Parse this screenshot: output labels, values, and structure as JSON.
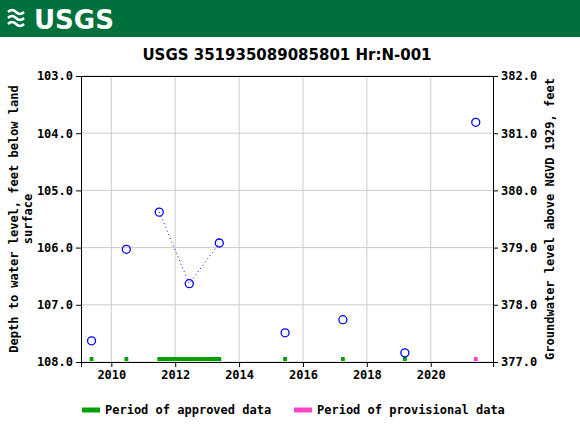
{
  "header": {
    "logo": "USGS"
  },
  "chart_data": {
    "type": "scatter",
    "title": "USGS 351935089085801 Hr:N-001",
    "y_label": "Depth to water level, feet below land\nsurface",
    "y2_label": "Groundwater level above NGVD 1929, feet",
    "xlim": [
      2009.05,
      2021.95
    ],
    "xticks": [
      2010,
      2012,
      2014,
      2016,
      2018,
      2020
    ],
    "ylim": [
      108,
      103
    ],
    "yticks": [
      {
        "value": 103,
        "label": "103.0"
      },
      {
        "value": 104,
        "label": "104.0"
      },
      {
        "value": 105,
        "label": "105.0"
      },
      {
        "value": 106,
        "label": "106.0"
      },
      {
        "value": 107,
        "label": "107.0"
      },
      {
        "value": 108,
        "label": "108.0"
      }
    ],
    "y2lim": [
      377,
      382
    ],
    "y2ticks": [
      {
        "value": 377,
        "label": "377.0"
      },
      {
        "value": 378,
        "label": "378.0"
      },
      {
        "value": 379,
        "label": "379.0"
      },
      {
        "value": 380,
        "label": "380.0"
      },
      {
        "value": 381,
        "label": "381.0"
      },
      {
        "value": 382,
        "label": "382.0"
      }
    ],
    "grid": true,
    "series": [
      {
        "color": "#0000ff",
        "marker": "circle",
        "line_style": "dotted",
        "x": [
          2009.38,
          null,
          2010.47,
          null,
          2011.5,
          2012.44,
          2013.38,
          null,
          2015.44,
          null,
          2017.25,
          null,
          2019.19,
          null,
          2021.41
        ],
        "values": [
          107.63,
          null,
          106.03,
          null,
          105.38,
          106.63,
          105.92,
          null,
          107.49,
          null,
          107.26,
          null,
          107.84,
          null,
          103.81
        ]
      }
    ],
    "periods": [
      {
        "name": "Period of approved data",
        "color": "#00a000",
        "ranges": [
          [
            2009.32,
            2009.44
          ],
          [
            2010.41,
            2010.53
          ],
          [
            2011.44,
            2013.44
          ],
          [
            2015.38,
            2015.5
          ],
          [
            2017.19,
            2017.31
          ],
          [
            2019.13,
            2019.25
          ]
        ]
      },
      {
        "name": "Period of provisional data",
        "color": "#ff44cc",
        "ranges": [
          [
            2021.35,
            2021.47
          ]
        ]
      }
    ]
  }
}
